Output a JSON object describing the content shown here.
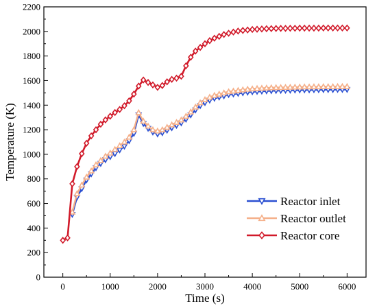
{
  "chart_data": {
    "type": "line",
    "xlabel": "Time (s)",
    "ylabel": "Temperature (K)",
    "xlim": [
      -400,
      6400
    ],
    "ylim": [
      0,
      2200
    ],
    "xticks": [
      0,
      1000,
      2000,
      3000,
      4000,
      5000,
      6000
    ],
    "yticks": [
      0,
      200,
      400,
      600,
      800,
      1000,
      1200,
      1400,
      1600,
      1800,
      2000,
      2200
    ],
    "grid": false,
    "legend_position": "bottom-right",
    "series": [
      {
        "name": "Reactor inlet",
        "color": "#2a4fd1",
        "marker": "triangle-down",
        "x": [
          200,
          300,
          400,
          500,
          600,
          700,
          800,
          900,
          1000,
          1100,
          1200,
          1300,
          1400,
          1500,
          1600,
          1700,
          1800,
          1900,
          2000,
          2100,
          2200,
          2300,
          2400,
          2500,
          2600,
          2700,
          2800,
          2900,
          3000,
          3100,
          3200,
          3300,
          3400,
          3500,
          3600,
          3700,
          3800,
          3900,
          4000,
          4100,
          4200,
          4300,
          4400,
          4500,
          4600,
          4700,
          4800,
          4900,
          5000,
          5100,
          5200,
          5300,
          5400,
          5500,
          5600,
          5700,
          5800,
          5900,
          6000
        ],
        "y": [
          510,
          650,
          720,
          790,
          840,
          890,
          925,
          955,
          980,
          1005,
          1035,
          1065,
          1110,
          1170,
          1320,
          1250,
          1210,
          1180,
          1165,
          1175,
          1195,
          1215,
          1235,
          1255,
          1285,
          1320,
          1360,
          1395,
          1420,
          1440,
          1455,
          1465,
          1475,
          1485,
          1490,
          1495,
          1500,
          1505,
          1508,
          1511,
          1513,
          1515,
          1517,
          1518,
          1519,
          1520,
          1521,
          1522,
          1523,
          1524,
          1524,
          1525,
          1525,
          1526,
          1526,
          1526,
          1527,
          1527,
          1527
        ]
      },
      {
        "name": "Reactor outlet",
        "color": "#f5b08a",
        "marker": "triangle-up",
        "x": [
          200,
          300,
          400,
          500,
          600,
          700,
          800,
          900,
          1000,
          1100,
          1200,
          1300,
          1400,
          1500,
          1600,
          1700,
          1800,
          1900,
          2000,
          2100,
          2200,
          2300,
          2400,
          2500,
          2600,
          2700,
          2800,
          2900,
          3000,
          3100,
          3200,
          3300,
          3400,
          3500,
          3600,
          3700,
          3800,
          3900,
          4000,
          4100,
          4200,
          4300,
          4400,
          4500,
          4600,
          4700,
          4800,
          4900,
          5000,
          5100,
          5200,
          5300,
          5400,
          5500,
          5600,
          5700,
          5800,
          5900,
          6000
        ],
        "y": [
          530,
          680,
          750,
          815,
          865,
          915,
          950,
          985,
          1010,
          1040,
          1070,
          1100,
          1140,
          1200,
          1340,
          1270,
          1230,
          1200,
          1190,
          1200,
          1220,
          1240,
          1260,
          1280,
          1310,
          1345,
          1385,
          1420,
          1445,
          1465,
          1480,
          1490,
          1500,
          1510,
          1515,
          1520,
          1525,
          1530,
          1533,
          1536,
          1538,
          1540,
          1542,
          1543,
          1544,
          1545,
          1546,
          1547,
          1548,
          1549,
          1549,
          1550,
          1550,
          1551,
          1551,
          1551,
          1552,
          1552,
          1552
        ]
      },
      {
        "name": "Reactor core",
        "color": "#d11a2a",
        "marker": "diamond",
        "x": [
          0,
          100,
          200,
          300,
          400,
          500,
          600,
          700,
          800,
          900,
          1000,
          1100,
          1200,
          1300,
          1400,
          1500,
          1600,
          1700,
          1800,
          1900,
          2000,
          2100,
          2200,
          2300,
          2400,
          2500,
          2600,
          2700,
          2800,
          2900,
          3000,
          3100,
          3200,
          3300,
          3400,
          3500,
          3600,
          3700,
          3800,
          3900,
          4000,
          4100,
          4200,
          4300,
          4400,
          4500,
          4600,
          4700,
          4800,
          4900,
          5000,
          5100,
          5200,
          5300,
          5400,
          5500,
          5600,
          5700,
          5800,
          5900,
          6000
        ],
        "y": [
          300,
          320,
          760,
          900,
          1005,
          1090,
          1150,
          1200,
          1245,
          1280,
          1310,
          1340,
          1365,
          1395,
          1435,
          1490,
          1555,
          1605,
          1585,
          1565,
          1545,
          1560,
          1590,
          1610,
          1620,
          1635,
          1720,
          1790,
          1840,
          1870,
          1900,
          1925,
          1945,
          1960,
          1975,
          1985,
          1995,
          2003,
          2008,
          2012,
          2016,
          2018,
          2020,
          2022,
          2023,
          2024,
          2025,
          2025,
          2026,
          2026,
          2027,
          2027,
          2027,
          2027,
          2027,
          2028,
          2028,
          2028,
          2028,
          2028,
          2028
        ]
      }
    ]
  }
}
